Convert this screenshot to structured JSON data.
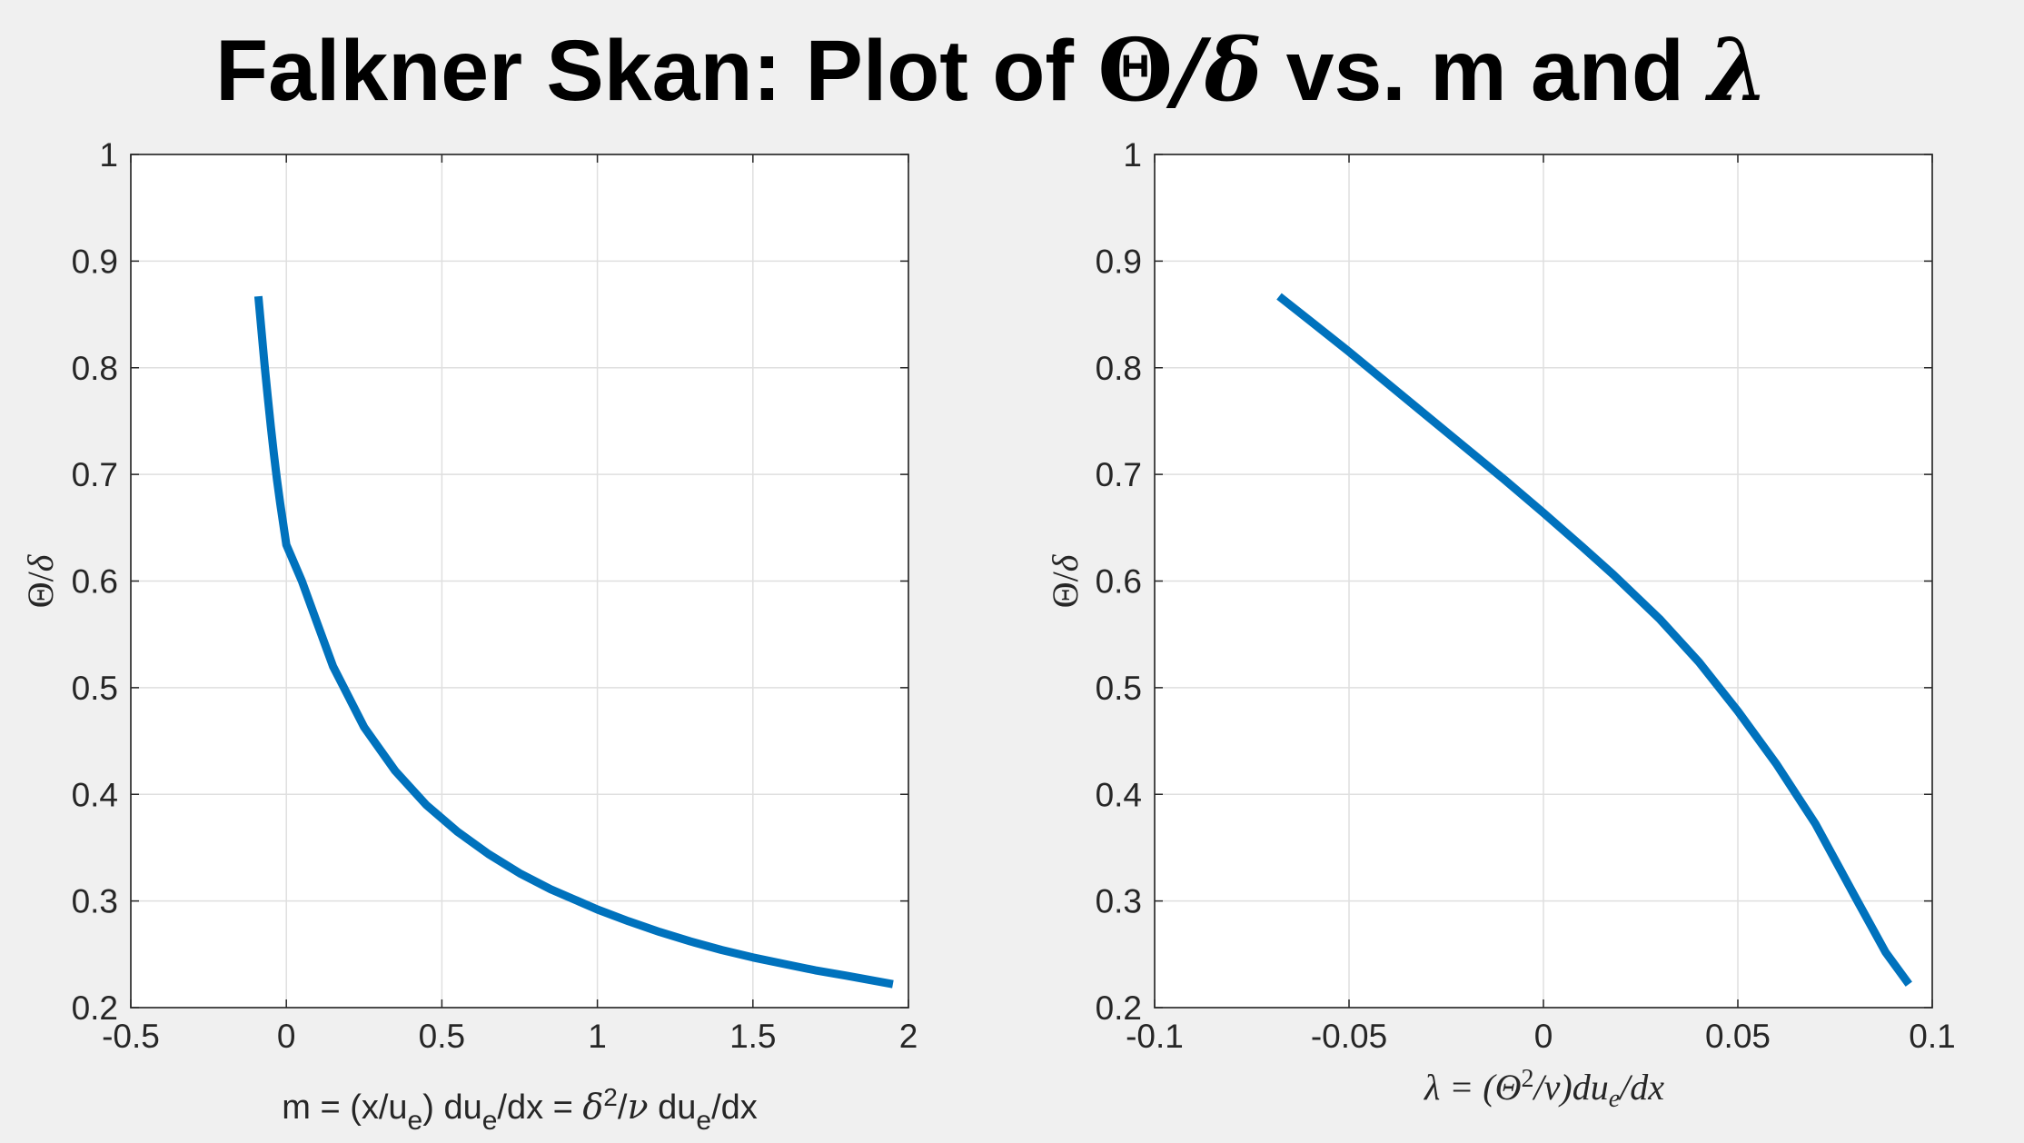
{
  "figure": {
    "background": "#f0f0f0",
    "title_prefix": "Falkner Skan: Plot of ",
    "title_theta": "Θ",
    "title_slash_delta": "/δ",
    "title_mid": " vs. m and ",
    "title_lambda": "λ"
  },
  "chart_data": [
    {
      "type": "line",
      "xlabel_parts": [
        "m = (x/u",
        "e",
        ") du",
        "e",
        "/dx = ",
        "δ",
        "2",
        "/",
        "ν",
        " du",
        "e",
        "/dx"
      ],
      "ylabel_parts": [
        "Θ",
        "/",
        "δ"
      ],
      "xlim": [
        -0.5,
        2
      ],
      "ylim": [
        0.2,
        1
      ],
      "xticks": [
        -0.5,
        0,
        0.5,
        1,
        1.5,
        2
      ],
      "xtick_labels": [
        "-0.5",
        "0",
        "0.5",
        "1",
        "1.5",
        "2"
      ],
      "yticks": [
        0.2,
        0.3,
        0.4,
        0.5,
        0.6,
        0.7,
        0.8,
        0.9,
        1
      ],
      "ytick_labels": [
        "0.2",
        "0.3",
        "0.4",
        "0.5",
        "0.6",
        "0.7",
        "0.8",
        "0.9",
        "1"
      ],
      "grid": true,
      "line_color": "#0072bd",
      "series": [
        {
          "x": [
            -0.09,
            -0.08,
            -0.07,
            -0.06,
            -0.05,
            -0.04,
            -0.03,
            -0.02,
            0,
            0.05,
            0.1,
            0.15,
            0.25,
            0.35,
            0.45,
            0.55,
            0.65,
            0.75,
            0.85,
            1,
            1.1,
            1.2,
            1.3,
            1.4,
            1.5,
            1.6,
            1.7,
            1.8,
            1.95
          ],
          "y": [
            0.867,
            0.835,
            0.803,
            0.773,
            0.745,
            0.719,
            0.695,
            0.673,
            0.634,
            0.6,
            0.56,
            0.52,
            0.463,
            0.422,
            0.39,
            0.365,
            0.344,
            0.326,
            0.311,
            0.292,
            0.281,
            0.271,
            0.262,
            0.254,
            0.247,
            0.241,
            0.235,
            0.23,
            0.222
          ]
        }
      ]
    },
    {
      "type": "line",
      "xlabel_parts": [
        "λ = (Θ",
        "2",
        "/ν)du",
        "e",
        "/dx"
      ],
      "ylabel_parts": [
        "Θ",
        "/",
        "δ"
      ],
      "xlim": [
        -0.1,
        0.1
      ],
      "ylim": [
        0.2,
        1
      ],
      "xticks": [
        -0.1,
        -0.05,
        0,
        0.05,
        0.1
      ],
      "xtick_labels": [
        "-0.1",
        "-0.05",
        "0",
        "0.05",
        "0.1"
      ],
      "yticks": [
        0.2,
        0.3,
        0.4,
        0.5,
        0.6,
        0.7,
        0.8,
        0.9,
        1
      ],
      "ytick_labels": [
        "0.2",
        "0.3",
        "0.4",
        "0.5",
        "0.6",
        "0.7",
        "0.8",
        "0.9",
        "1"
      ],
      "grid": true,
      "line_color": "#0072bd",
      "series": [
        {
          "x": [
            -0.068,
            -0.06,
            -0.05,
            -0.04,
            -0.03,
            -0.02,
            -0.01,
            0,
            0.01,
            0.018,
            0.03,
            0.04,
            0.05,
            0.06,
            0.07,
            0.08,
            0.088,
            0.094
          ],
          "y": [
            0.867,
            0.844,
            0.815,
            0.785,
            0.755,
            0.725,
            0.695,
            0.664,
            0.632,
            0.606,
            0.564,
            0.524,
            0.478,
            0.428,
            0.372,
            0.305,
            0.252,
            0.222
          ]
        }
      ]
    }
  ]
}
